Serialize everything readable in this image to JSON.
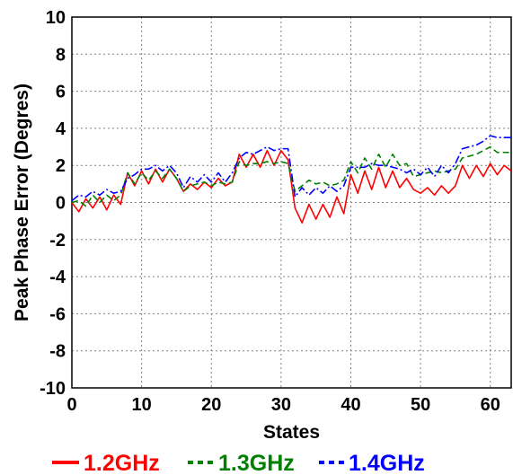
{
  "chart_data": {
    "type": "line",
    "title": "",
    "xlabel": "States",
    "ylabel": "Peak Phase Error (Degres)",
    "xlim": [
      0,
      63
    ],
    "ylim": [
      -10,
      10
    ],
    "xticks": [
      "0",
      "10",
      "20",
      "30",
      "40",
      "50",
      "60"
    ],
    "yticks": [
      "-10",
      "-8",
      "-6",
      "-4",
      "-2",
      "0",
      "2",
      "4",
      "6",
      "8",
      "10"
    ],
    "grid": true,
    "legend_position": "bottom",
    "series": [
      {
        "name": "1.2GHz",
        "color": "#ff0000",
        "dash": "solid",
        "values": [
          0.0,
          -0.5,
          0.2,
          -0.3,
          0.3,
          -0.4,
          0.4,
          -0.1,
          1.6,
          0.9,
          1.7,
          1.0,
          1.8,
          1.1,
          1.8,
          1.3,
          0.6,
          1.0,
          0.7,
          1.1,
          0.8,
          1.3,
          0.9,
          1.1,
          2.6,
          1.9,
          2.6,
          1.9,
          2.8,
          2.0,
          2.8,
          2.3,
          -0.3,
          -1.1,
          -0.1,
          -0.9,
          -0.1,
          -0.8,
          0.3,
          -0.6,
          1.5,
          0.5,
          1.7,
          0.7,
          1.9,
          0.8,
          1.7,
          0.8,
          1.3,
          0.7,
          0.5,
          0.8,
          0.4,
          0.9,
          0.5,
          0.9,
          2.0,
          1.3,
          2.0,
          1.4,
          2.1,
          1.5,
          2.0,
          1.7
        ]
      },
      {
        "name": "1.3GHz",
        "color": "#008000",
        "dash": "dashed",
        "values": [
          0.0,
          0.1,
          -0.2,
          0.4,
          0.0,
          0.4,
          0.1,
          0.4,
          1.6,
          1.0,
          1.6,
          1.2,
          1.7,
          1.3,
          1.8,
          1.3,
          0.6,
          0.9,
          1.0,
          1.1,
          0.9,
          1.1,
          1.0,
          1.1,
          2.2,
          2.0,
          2.1,
          2.1,
          2.2,
          2.1,
          2.2,
          2.1,
          0.6,
          0.9,
          1.2,
          1.0,
          1.1,
          0.9,
          1.0,
          1.2,
          2.2,
          1.6,
          2.4,
          1.8,
          2.6,
          1.9,
          2.6,
          2.0,
          2.1,
          1.4,
          1.5,
          1.6,
          1.7,
          1.6,
          1.7,
          1.8,
          2.4,
          2.5,
          2.6,
          2.8,
          3.0,
          2.7,
          2.7,
          2.7
        ]
      },
      {
        "name": "1.4GHz",
        "color": "#0000ff",
        "dash": "dashdot",
        "values": [
          0.1,
          0.4,
          0.3,
          0.6,
          0.4,
          0.7,
          0.5,
          0.6,
          1.3,
          1.5,
          1.8,
          1.8,
          2.0,
          1.7,
          2.0,
          1.6,
          0.8,
          1.4,
          1.1,
          1.5,
          1.1,
          1.6,
          1.1,
          1.6,
          2.4,
          2.7,
          2.6,
          2.8,
          3.0,
          2.8,
          2.9,
          2.9,
          0.3,
          0.8,
          0.4,
          0.8,
          0.5,
          0.9,
          0.6,
          0.9,
          1.9,
          1.9,
          1.9,
          2.1,
          2.0,
          2.0,
          1.9,
          1.8,
          1.6,
          1.8,
          1.5,
          1.9,
          1.4,
          2.0,
          1.6,
          2.1,
          2.9,
          3.0,
          3.1,
          3.3,
          3.6,
          3.5,
          3.5,
          3.5
        ]
      }
    ]
  }
}
